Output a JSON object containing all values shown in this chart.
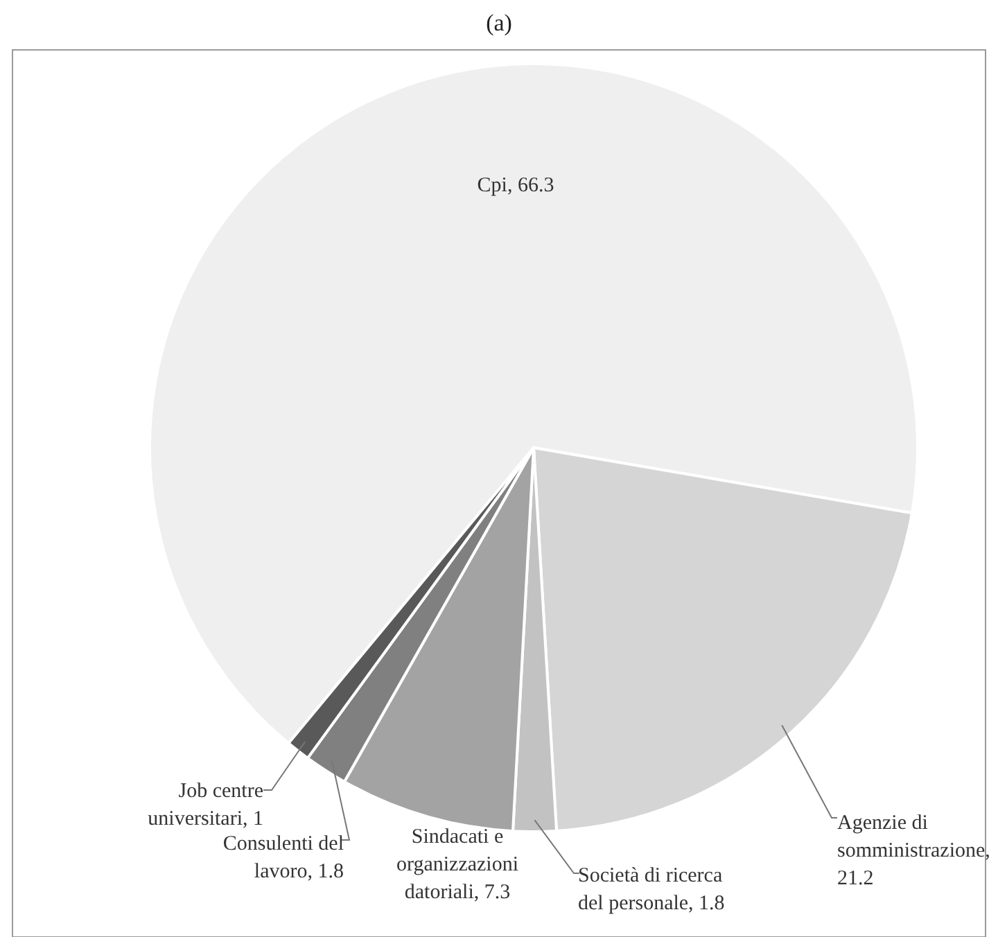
{
  "chart_data": {
    "type": "pie",
    "title": "(a)",
    "categories": [
      "Cpi",
      "Agenzie di somministrazione",
      "Società di ricerca del personale",
      "Sindacati e organizzazioni datoriali",
      "Consulenti del lavoro",
      "Job centre universitari"
    ],
    "values": [
      66.3,
      21.2,
      1.8,
      7.3,
      1.8,
      1
    ],
    "colors": [
      "#efefef",
      "#d5d5d5",
      "#c2c2c2",
      "#a3a3a3",
      "#808080",
      "#595959"
    ],
    "value_labels": [
      ", 66.3",
      ", 21.2",
      ", 1.8",
      ", 7.3",
      ", 1.8",
      ", 1"
    ]
  }
}
